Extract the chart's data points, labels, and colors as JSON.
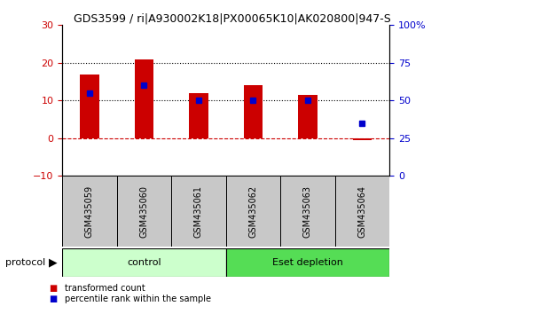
{
  "title": "GDS3599 / ri|A930002K18|PX00065K10|AK020800|947-S",
  "categories": [
    "GSM435059",
    "GSM435060",
    "GSM435061",
    "GSM435062",
    "GSM435063",
    "GSM435064"
  ],
  "red_values": [
    17,
    21,
    12,
    14,
    11.5,
    -0.5
  ],
  "blue_values": [
    55,
    60,
    50,
    50,
    50,
    35
  ],
  "ylim_left": [
    -10,
    30
  ],
  "ylim_right": [
    0,
    100
  ],
  "yticks_left": [
    -10,
    0,
    10,
    20,
    30
  ],
  "yticks_right": [
    0,
    25,
    50,
    75,
    100
  ],
  "ytick_labels_right": [
    "0",
    "25",
    "50",
    "75",
    "100%"
  ],
  "hline_values": [
    10,
    20
  ],
  "hline_color": "#000000",
  "zero_line_color": "#cc0000",
  "bar_color": "#cc0000",
  "dot_color": "#0000cc",
  "control_label": "control",
  "treatment_label": "Eset depletion",
  "protocol_label": "protocol",
  "legend_red": "transformed count",
  "legend_blue": "percentile rank within the sample",
  "control_color": "#ccffcc",
  "treatment_color": "#55dd55",
  "bar_width": 0.35,
  "tick_label_color_left": "#cc0000",
  "tick_label_color_right": "#0000cc",
  "background_color": "#ffffff",
  "sample_bg_color": "#c8c8c8"
}
